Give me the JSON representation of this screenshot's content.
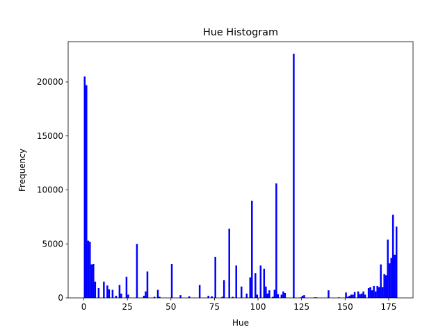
{
  "chart_data": {
    "type": "histogram",
    "title": "Hue Histogram",
    "x_label": "Hue",
    "y_label": "Frequency",
    "color": "#0000ff",
    "bins": [
      0,
      1,
      2,
      3,
      4,
      5,
      6,
      7,
      8,
      9,
      10,
      11,
      12,
      13,
      14,
      15,
      16,
      17,
      18,
      19,
      20,
      21,
      22,
      23,
      24,
      25,
      26,
      27,
      28,
      29,
      30,
      31,
      32,
      33,
      34,
      35,
      36,
      37,
      38,
      39,
      40,
      41,
      42,
      43,
      44,
      45,
      46,
      47,
      48,
      49,
      50,
      51,
      52,
      53,
      54,
      55,
      56,
      57,
      58,
      59,
      60,
      61,
      62,
      63,
      64,
      65,
      66,
      67,
      68,
      69,
      70,
      71,
      72,
      73,
      74,
      75,
      76,
      77,
      78,
      79,
      80,
      81,
      82,
      83,
      84,
      85,
      86,
      87,
      88,
      89,
      90,
      91,
      92,
      93,
      94,
      95,
      96,
      97,
      98,
      99,
      100,
      101,
      102,
      103,
      104,
      105,
      106,
      107,
      108,
      109,
      110,
      111,
      112,
      113,
      114,
      115,
      116,
      117,
      118,
      119,
      120,
      121,
      122,
      123,
      124,
      125,
      126,
      127,
      128,
      129,
      130,
      131,
      132,
      133,
      134,
      135,
      136,
      137,
      138,
      139,
      140,
      141,
      142,
      143,
      144,
      145,
      146,
      147,
      148,
      149,
      150,
      151,
      152,
      153,
      154,
      155,
      156,
      157,
      158,
      159,
      160,
      161,
      162,
      163,
      164,
      165,
      166,
      167,
      168,
      169,
      170,
      171,
      172,
      173,
      174,
      175,
      176,
      177,
      178,
      179,
      180
    ],
    "values": [
      20500,
      19700,
      5300,
      5200,
      3100,
      3150,
      1500,
      0,
      900,
      0,
      0,
      1500,
      0,
      1150,
      800,
      0,
      750,
      0,
      200,
      0,
      1200,
      400,
      0,
      0,
      1950,
      300,
      0,
      0,
      0,
      0,
      5000,
      0,
      0,
      0,
      200,
      600,
      2450,
      0,
      0,
      0,
      100,
      0,
      750,
      100,
      0,
      0,
      0,
      0,
      0,
      0,
      3150,
      0,
      0,
      0,
      0,
      250,
      0,
      0,
      0,
      0,
      150,
      0,
      0,
      0,
      0,
      0,
      1200,
      0,
      0,
      0,
      0,
      200,
      0,
      150,
      0,
      3800,
      0,
      0,
      0,
      100,
      1650,
      0,
      0,
      6400,
      0,
      100,
      0,
      3000,
      0,
      0,
      1050,
      0,
      0,
      400,
      0,
      1900,
      9000,
      0,
      2300,
      300,
      0,
      3000,
      0,
      2700,
      1050,
      400,
      700,
      0,
      100,
      750,
      10600,
      350,
      0,
      300,
      600,
      450,
      0,
      0,
      0,
      0,
      22600,
      0,
      0,
      0,
      50,
      200,
      250,
      0,
      0,
      0,
      0,
      0,
      50,
      50,
      0,
      0,
      0,
      0,
      0,
      0,
      700,
      0,
      0,
      0,
      0,
      0,
      50,
      0,
      0,
      0,
      500,
      100,
      200,
      300,
      300,
      550,
      0,
      600,
      350,
      400,
      600,
      300,
      0,
      900,
      1000,
      700,
      1100,
      600,
      1100,
      1000,
      3100,
      1000,
      2200,
      2100,
      5400,
      3200,
      3700,
      7700,
      4000,
      6600
    ],
    "xlim": [
      -9,
      189
    ],
    "ylim": [
      0,
      23730
    ],
    "xticks": [
      0,
      25,
      50,
      75,
      100,
      125,
      150,
      175
    ],
    "yticks": [
      0,
      5000,
      10000,
      15000,
      20000
    ]
  }
}
